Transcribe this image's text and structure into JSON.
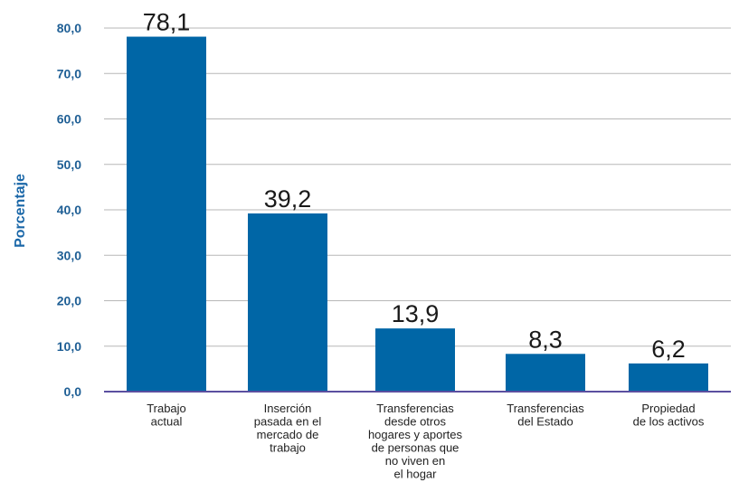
{
  "chart_data": {
    "type": "bar",
    "ylabel": "Porcentaje",
    "xlabel": "",
    "ylim": [
      0,
      80
    ],
    "yticks": [
      "0,0",
      "10,0",
      "20,0",
      "30,0",
      "40,0",
      "50,0",
      "60,0",
      "70,0",
      "80,0"
    ],
    "grid": true,
    "legend": "none",
    "bar_color": "#0066a6",
    "axis_color": "#5a4fa0",
    "categories": [
      [
        "Trabajo",
        "actual"
      ],
      [
        "Inserción",
        "pasada en el",
        "mercado de",
        "trabajo"
      ],
      [
        "Transferencias",
        "desde otros",
        "hogares y aportes",
        "de personas que",
        "no viven en",
        "el hogar"
      ],
      [
        "Transferencias",
        "del Estado"
      ],
      [
        "Propiedad",
        "de los activos"
      ]
    ],
    "values": [
      78.1,
      39.2,
      13.9,
      8.3,
      6.2
    ],
    "data_labels": [
      "78,1",
      "39,2",
      "13,9",
      "8,3",
      "6,2"
    ]
  }
}
